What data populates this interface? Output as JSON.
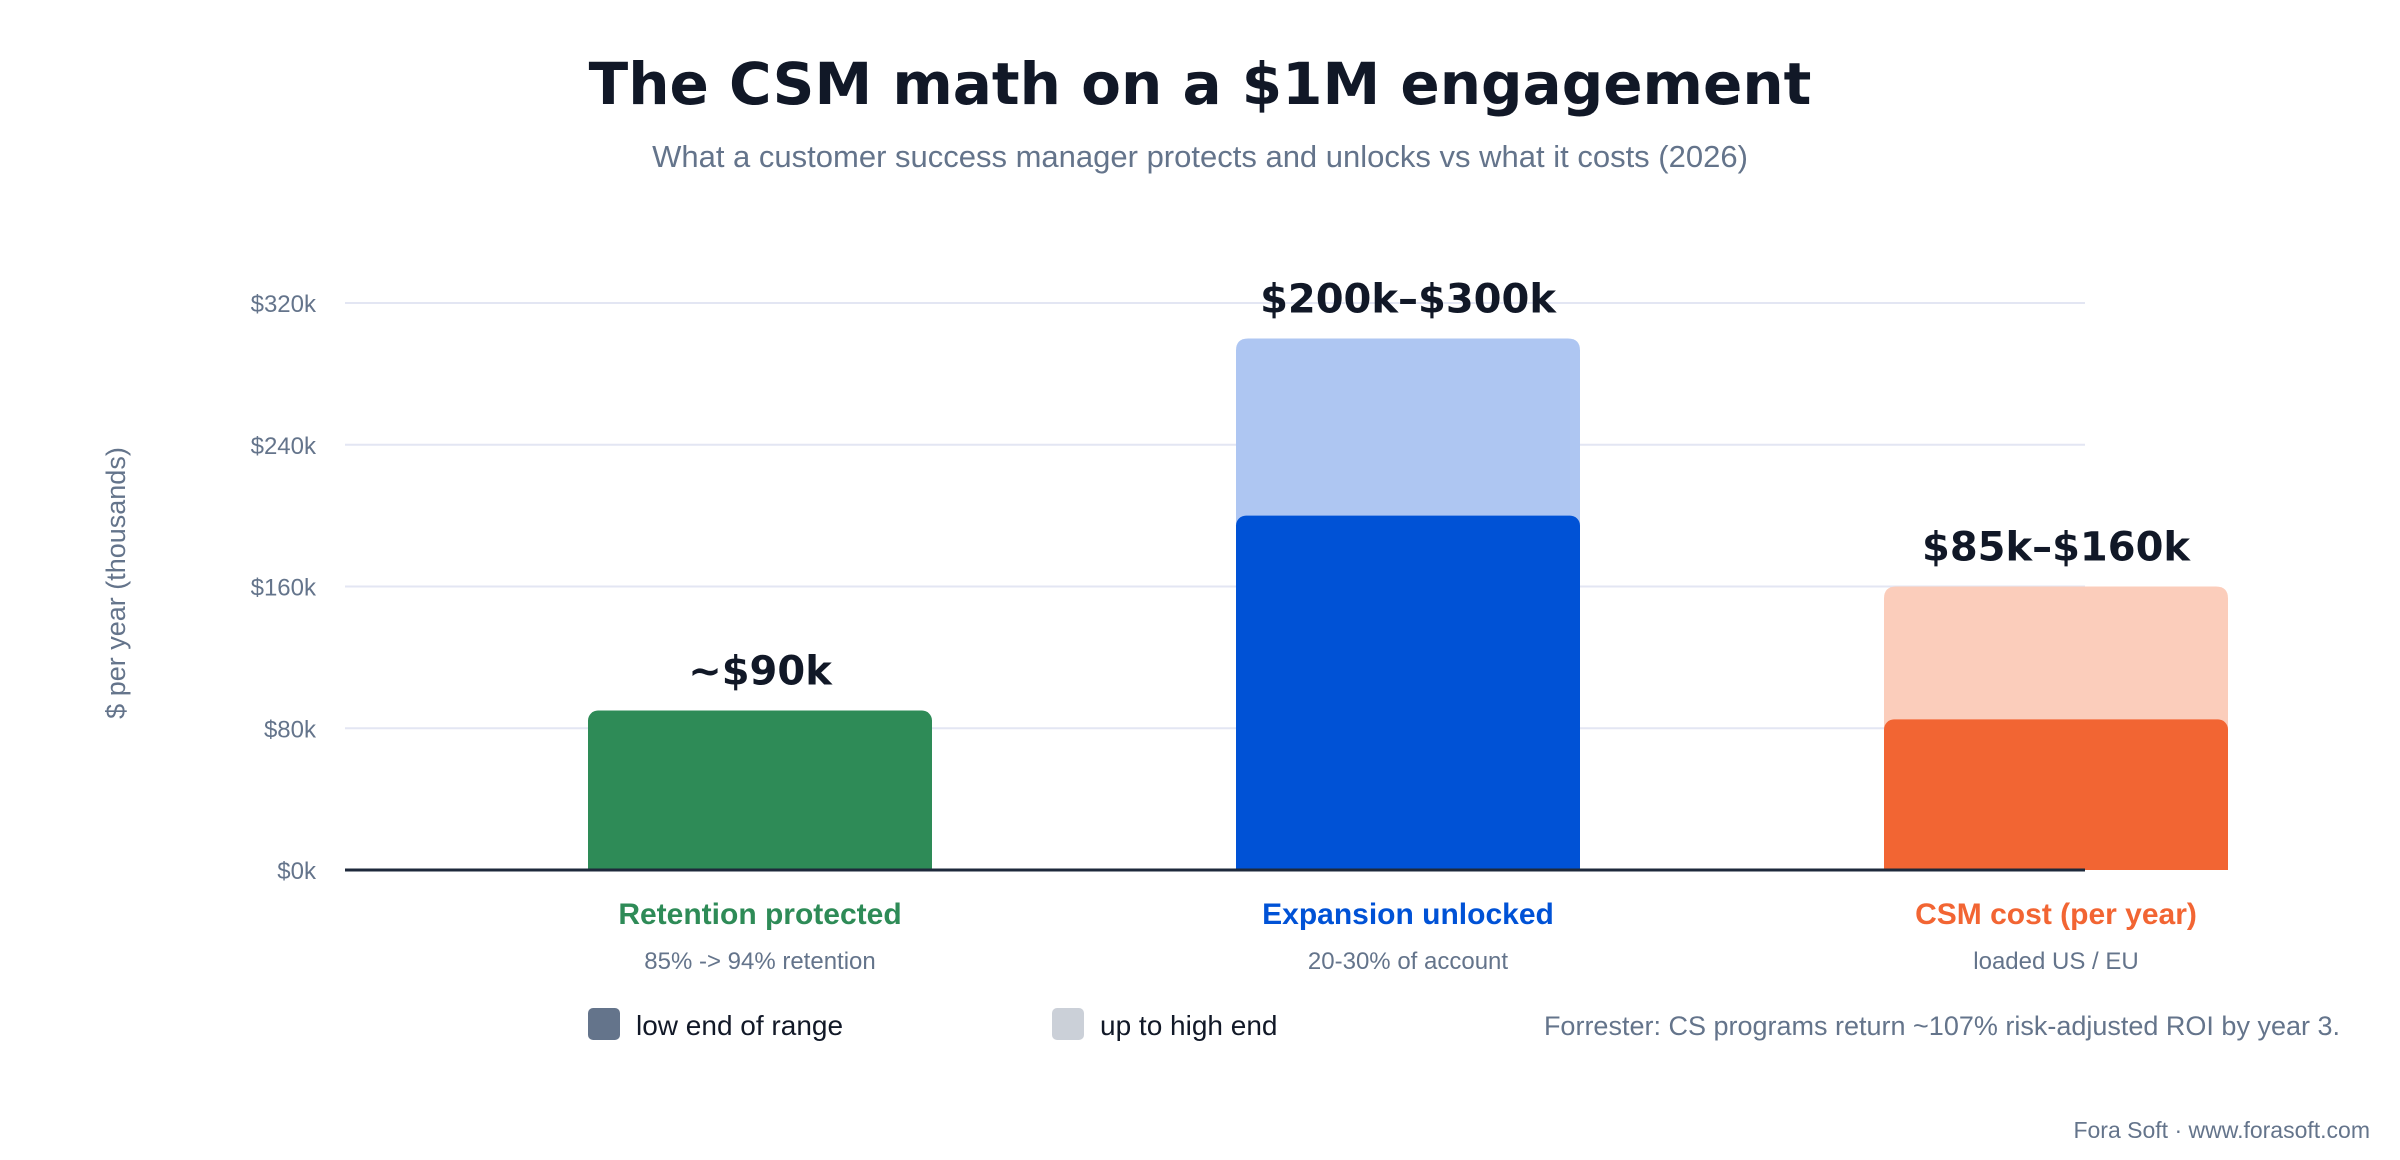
{
  "chart_data": {
    "type": "bar",
    "title": "The CSM math on a $1M engagement",
    "subtitle": "What a customer success manager protects and unlocks vs what it costs (2026)",
    "ylabel": "$ per year (thousands)",
    "ylim": [
      0,
      320
    ],
    "yticks": [
      0,
      80,
      160,
      240,
      320
    ],
    "ytick_labels": [
      "$0k",
      "$80k",
      "$160k",
      "$240k",
      "$320k"
    ],
    "grid": true,
    "bars": [
      {
        "category": "Retention protected",
        "sublabel": "85% -> 94% retention",
        "low": 90,
        "high": 90,
        "value_label": "~$90k",
        "color_low": "#2e8b57",
        "color_high": "#2e8b57"
      },
      {
        "category": "Expansion unlocked",
        "sublabel": "20-30% of account",
        "low": 200,
        "high": 300,
        "value_label": "$200k–$300k",
        "color_low": "#0052d6",
        "color_high": "#aec6f2"
      },
      {
        "category": "CSM cost (per year)",
        "sublabel": "loaded US / EU",
        "low": 85,
        "high": 160,
        "value_label": "$85k–$160k",
        "color_low": "#f26533",
        "color_high": "#fbcdbb"
      }
    ],
    "legend": {
      "placement": "bottom",
      "items": [
        {
          "label": "low end of range",
          "color": "#64748b"
        },
        {
          "label": "up to high end",
          "color": "#cbd0d8"
        }
      ]
    },
    "annotation": "Forrester: CS programs return ~107% risk-adjusted ROI by year 3.",
    "footer": "Fora Soft · www.forasoft.com"
  },
  "colors": {
    "title": "#111827",
    "muted": "#64748b",
    "grid": "#e3e6f3",
    "axis": "#1e293b"
  }
}
